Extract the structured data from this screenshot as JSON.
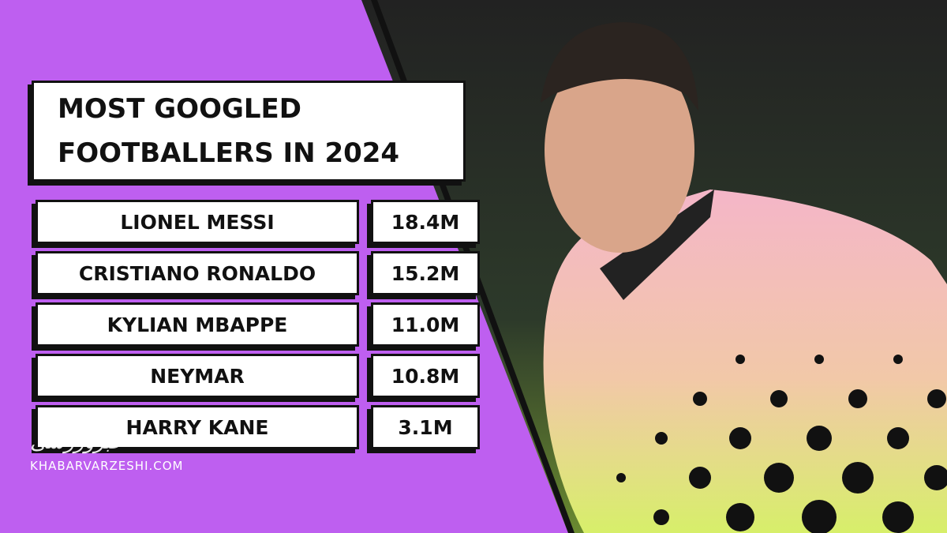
{
  "header": {
    "title": [
      "MOST GOOGLED",
      "FOOTBALLERS IN 2024"
    ]
  },
  "table": {
    "rows": [
      [
        "LIONEL MESSI",
        "18.4M"
      ],
      [
        "CRISTIANO RONALDO",
        "15.2M"
      ],
      [
        "KYLIAN MBAPPE",
        "11.0M"
      ],
      [
        "NEYMAR",
        "10.8M"
      ],
      [
        "HARRY KANE",
        "3.1M"
      ]
    ]
  },
  "watermark": {
    "logo": "خبرورزشی",
    "site": "KHABARVARZESHI.COM"
  }
}
